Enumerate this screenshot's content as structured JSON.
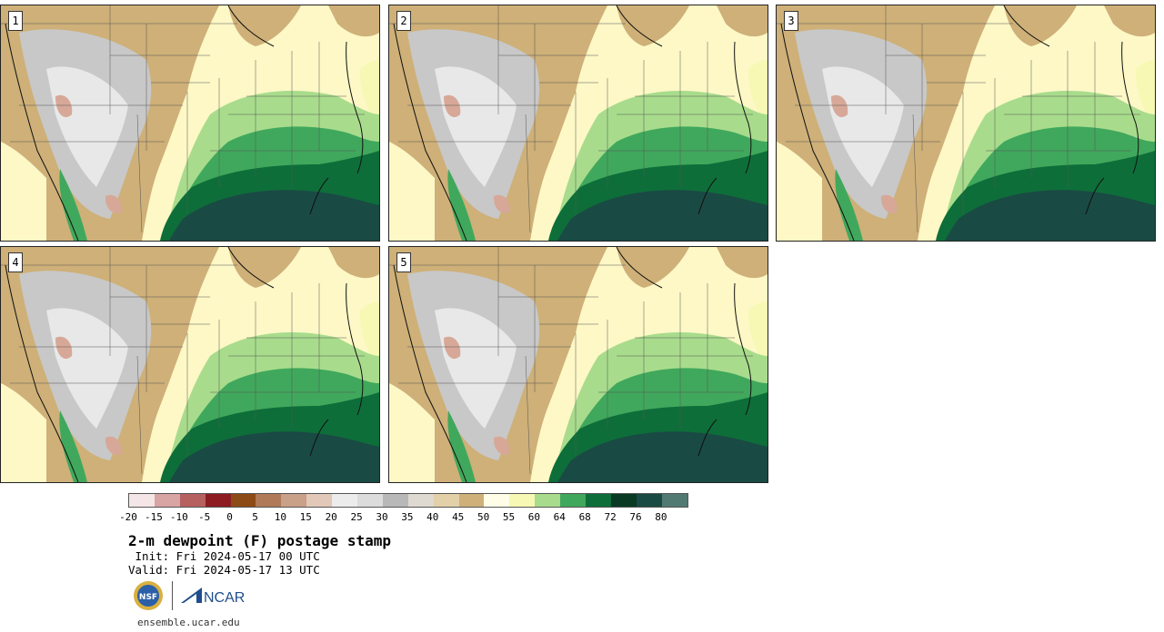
{
  "panels": [
    {
      "label": "1"
    },
    {
      "label": "2"
    },
    {
      "label": "3"
    },
    {
      "label": "4"
    },
    {
      "label": "5"
    }
  ],
  "colorbar": {
    "colors": [
      "#f4e6e6",
      "#d8a4a4",
      "#b66060",
      "#8c1c22",
      "#8c4a14",
      "#b07a58",
      "#c9a088",
      "#e2c8b8",
      "#ececec",
      "#dcdcdc",
      "#b8b8b8",
      "#dedad2",
      "#e2d0a8",
      "#ceb078",
      "#fffce8",
      "#f6f8b4",
      "#a8dc8c",
      "#40a85c",
      "#0e6e3a",
      "#0a3a24",
      "#1a4a44",
      "#527a72"
    ],
    "ticks": [
      "-20",
      "-15",
      "-10",
      "-5",
      "0",
      "5",
      "10",
      "15",
      "20",
      "25",
      "30",
      "35",
      "40",
      "45",
      "50",
      "55",
      "60",
      "64",
      "68",
      "72",
      "76",
      "80"
    ]
  },
  "title": "2-m dewpoint (F) postage stamp",
  "init": " Init: Fri 2024-05-17 00 UTC",
  "valid": "Valid: Fri 2024-05-17 13 UTC",
  "logos": {
    "nsf_text": "NSF",
    "ncar_text": "NCAR"
  },
  "url": "ensemble.ucar.edu"
}
